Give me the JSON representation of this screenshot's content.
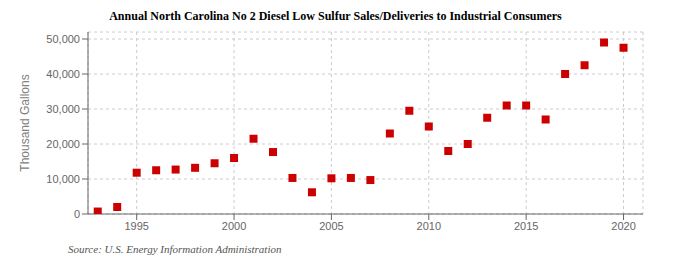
{
  "chart_data": {
    "type": "scatter",
    "title": "Annual North Carolina No 2 Diesel Low Sulfur Sales/Deliveries to Industrial Consumers",
    "y_label": "Thousand Gallons",
    "annotations": [
      "Source: U.S. Energy Information Administration"
    ],
    "x": [
      1993,
      1994,
      1995,
      1996,
      1997,
      1998,
      1999,
      2000,
      2001,
      2002,
      2003,
      2004,
      2005,
      2006,
      2007,
      2008,
      2009,
      2010,
      2011,
      2012,
      2013,
      2014,
      2015,
      2016,
      2017,
      2018,
      2019,
      2020
    ],
    "values": [
      700,
      2000,
      11800,
      12500,
      12700,
      13200,
      14500,
      16000,
      21500,
      17700,
      10300,
      6200,
      10200,
      10300,
      9700,
      23000,
      29500,
      25000,
      18000,
      20000,
      27500,
      31000,
      31000,
      27000,
      40000,
      42500,
      49000,
      47500
    ],
    "color": "#cc0000",
    "marker": "square",
    "xlim": [
      1992.5,
      2021
    ],
    "xticks": [
      1995,
      2000,
      2005,
      2010,
      2015,
      2020
    ],
    "ylim": [
      0,
      52000
    ],
    "yticks": [
      0,
      {
        "value": 10000,
        "label": "10,000"
      },
      {
        "value": 20000,
        "label": "20,000"
      },
      {
        "value": 30000,
        "label": "30,000"
      },
      {
        "value": 40000,
        "label": "40,000"
      },
      {
        "value": 50000,
        "label": "50,000"
      }
    ],
    "grid": true
  }
}
